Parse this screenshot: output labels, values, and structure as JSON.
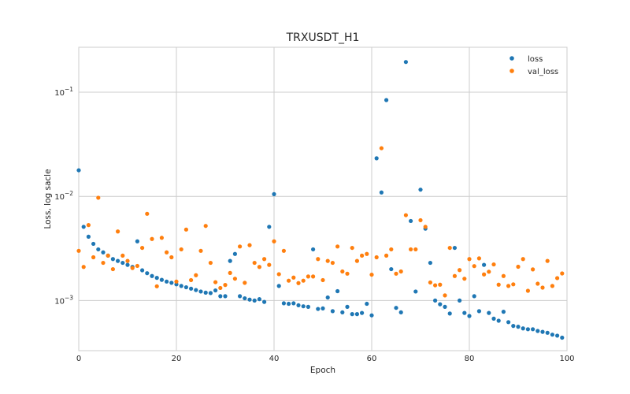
{
  "chart_data": {
    "type": "scatter",
    "title": "TRXUSDT_H1",
    "xlabel": "Epoch",
    "ylabel": "Loss, log sacle",
    "xlim": [
      0,
      100
    ],
    "ylim": [
      0.00033,
      0.27
    ],
    "yscale": "log",
    "grid": true,
    "legend": "top-right",
    "xticks": [
      0,
      20,
      40,
      60,
      80,
      100
    ],
    "xtick_labels": [
      "0",
      "20",
      "40",
      "60",
      "80",
      "100"
    ],
    "yticks": [
      0.001,
      0.01,
      0.1
    ],
    "ytick_labels": [
      {
        "base": "10",
        "exp": "−3"
      },
      {
        "base": "10",
        "exp": "−2"
      },
      {
        "base": "10",
        "exp": "−1"
      }
    ],
    "x": [
      0,
      1,
      2,
      3,
      4,
      5,
      6,
      7,
      8,
      9,
      10,
      11,
      12,
      13,
      14,
      15,
      16,
      17,
      18,
      19,
      20,
      21,
      22,
      23,
      24,
      25,
      26,
      27,
      28,
      29,
      30,
      31,
      32,
      33,
      34,
      35,
      36,
      37,
      38,
      39,
      40,
      41,
      42,
      43,
      44,
      45,
      46,
      47,
      48,
      49,
      50,
      51,
      52,
      53,
      54,
      55,
      56,
      57,
      58,
      59,
      60,
      61,
      62,
      63,
      64,
      65,
      66,
      67,
      68,
      69,
      70,
      71,
      72,
      73,
      74,
      75,
      76,
      77,
      78,
      79,
      80,
      81,
      82,
      83,
      84,
      85,
      86,
      87,
      88,
      89,
      90,
      91,
      92,
      93,
      94,
      95,
      96,
      97,
      98,
      99
    ],
    "series": [
      {
        "name": "loss",
        "color": "#1f77b4",
        "values": [
          0.0178,
          0.0051,
          0.0041,
          0.0035,
          0.0031,
          0.0029,
          0.0027,
          0.0025,
          0.0024,
          0.0023,
          0.0022,
          0.0021,
          0.0037,
          0.00195,
          0.00183,
          0.00172,
          0.00165,
          0.00158,
          0.00152,
          0.00148,
          0.00143,
          0.00138,
          0.00134,
          0.0013,
          0.00126,
          0.00122,
          0.00119,
          0.00118,
          0.00125,
          0.0011,
          0.0011,
          0.0024,
          0.0028,
          0.0011,
          0.00105,
          0.00102,
          0.001,
          0.00103,
          0.00097,
          0.0051,
          0.0105,
          0.00138,
          0.00094,
          0.00093,
          0.00094,
          0.0009,
          0.00088,
          0.00087,
          0.0031,
          0.00083,
          0.00084,
          0.00107,
          0.00079,
          0.00123,
          0.00077,
          0.00087,
          0.00074,
          0.00074,
          0.00076,
          0.00093,
          0.00072,
          0.0232,
          0.0109,
          0.084,
          0.002,
          0.00085,
          0.00077,
          0.195,
          0.0058,
          0.00122,
          0.0116,
          0.0049,
          0.0023,
          0.001,
          0.00092,
          0.00087,
          0.00075,
          0.0032,
          0.001,
          0.00076,
          0.00071,
          0.0011,
          0.00079,
          0.0022,
          0.00076,
          0.00067,
          0.00064,
          0.00078,
          0.00062,
          0.00057,
          0.00056,
          0.00054,
          0.00053,
          0.00053,
          0.00051,
          0.0005,
          0.00049,
          0.00047,
          0.00046,
          0.00044
        ]
      },
      {
        "name": "val_loss",
        "color": "#ff7f0e",
        "values": [
          0.003,
          0.0021,
          0.0053,
          0.0026,
          0.0097,
          0.0023,
          0.0027,
          0.002,
          0.0046,
          0.0027,
          0.0024,
          0.00205,
          0.00215,
          0.0032,
          0.0068,
          0.0039,
          0.00137,
          0.004,
          0.0029,
          0.0026,
          0.00152,
          0.0031,
          0.0048,
          0.00157,
          0.00175,
          0.003,
          0.0052,
          0.0023,
          0.0015,
          0.00132,
          0.00141,
          0.00184,
          0.00162,
          0.0033,
          0.00148,
          0.0034,
          0.0023,
          0.0021,
          0.0025,
          0.0022,
          0.0037,
          0.00179,
          0.003,
          0.00155,
          0.00166,
          0.00147,
          0.00155,
          0.0017,
          0.0017,
          0.0025,
          0.00157,
          0.0024,
          0.0023,
          0.0033,
          0.0019,
          0.00181,
          0.0032,
          0.0024,
          0.0027,
          0.0028,
          0.00177,
          0.0026,
          0.029,
          0.0027,
          0.0031,
          0.00181,
          0.0019,
          0.0066,
          0.0031,
          0.0031,
          0.0059,
          0.0051,
          0.00149,
          0.0014,
          0.00142,
          0.00112,
          0.0032,
          0.00172,
          0.00196,
          0.00162,
          0.0025,
          0.00214,
          0.00254,
          0.00178,
          0.00189,
          0.00222,
          0.00142,
          0.00172,
          0.00138,
          0.00143,
          0.00211,
          0.0025,
          0.00124,
          0.00199,
          0.00145,
          0.00133,
          0.0024,
          0.00138,
          0.00164,
          0.00182
        ]
      }
    ]
  }
}
